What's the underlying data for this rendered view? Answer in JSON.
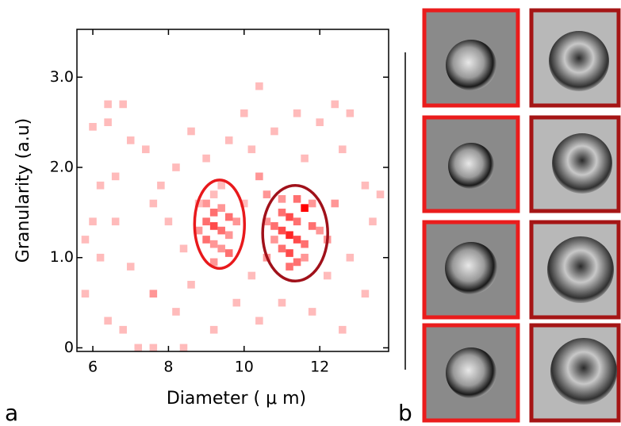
{
  "chart_data": {
    "type": "heatmap",
    "xlabel": "Diameter ( μ m)",
    "ylabel": "Granularity (a.u)",
    "panel_labels": [
      "a",
      "b"
    ],
    "xlim": [
      5.58,
      13.82
    ],
    "ylim": [
      -0.04,
      3.53
    ],
    "xticks": [
      6,
      8,
      10,
      12
    ],
    "yticks": [
      0,
      {
        "value": 1.0,
        "label": "1.0"
      },
      {
        "value": 2.0,
        "label": "2.0"
      },
      {
        "value": 3.0,
        "label": "3.0"
      }
    ],
    "xbin": 0.2,
    "ybin": 0.085,
    "color": "#ff0000",
    "cells": [
      [
        9.0,
        1.6,
        2
      ],
      [
        9.2,
        1.5,
        3
      ],
      [
        9.4,
        1.55,
        2
      ],
      [
        9.6,
        1.45,
        3
      ],
      [
        9.0,
        1.4,
        3
      ],
      [
        9.2,
        1.35,
        4
      ],
      [
        9.4,
        1.3,
        3
      ],
      [
        9.6,
        1.25,
        2
      ],
      [
        8.8,
        1.3,
        2
      ],
      [
        9.0,
        1.2,
        3
      ],
      [
        9.2,
        1.15,
        2
      ],
      [
        9.4,
        1.1,
        2
      ],
      [
        9.6,
        1.05,
        3
      ],
      [
        9.2,
        1.7,
        1
      ],
      [
        9.8,
        1.4,
        2
      ],
      [
        9.4,
        1.8,
        1
      ],
      [
        8.8,
        1.6,
        1
      ],
      [
        9.2,
        0.95,
        2
      ],
      [
        11.0,
        1.5,
        3
      ],
      [
        11.2,
        1.45,
        4
      ],
      [
        11.4,
        1.4,
        3
      ],
      [
        11.6,
        1.55,
        6
      ],
      [
        11.8,
        1.35,
        3
      ],
      [
        10.8,
        1.35,
        3
      ],
      [
        11.0,
        1.3,
        4
      ],
      [
        11.2,
        1.25,
        5
      ],
      [
        11.4,
        1.2,
        4
      ],
      [
        11.6,
        1.15,
        3
      ],
      [
        11.0,
        1.1,
        3
      ],
      [
        11.2,
        1.05,
        4
      ],
      [
        11.4,
        0.95,
        3
      ],
      [
        10.8,
        1.2,
        2
      ],
      [
        11.8,
        1.6,
        2
      ],
      [
        11.4,
        1.65,
        3
      ],
      [
        11.0,
        1.65,
        2
      ],
      [
        11.2,
        0.9,
        3
      ],
      [
        10.6,
        1.4,
        2
      ],
      [
        12.0,
        1.3,
        2
      ],
      [
        11.6,
        1.0,
        2
      ],
      [
        10.6,
        1.0,
        2
      ],
      [
        6.4,
        2.7,
        1
      ],
      [
        6.8,
        2.7,
        1
      ],
      [
        6.0,
        2.45,
        1
      ],
      [
        6.4,
        2.5,
        1
      ],
      [
        7.4,
        2.2,
        1
      ],
      [
        7.0,
        2.3,
        1
      ],
      [
        6.2,
        1.8,
        1
      ],
      [
        6.6,
        1.9,
        1
      ],
      [
        7.6,
        1.6,
        1
      ],
      [
        7.8,
        1.8,
        1
      ],
      [
        6.0,
        1.4,
        1
      ],
      [
        6.6,
        1.4,
        1
      ],
      [
        6.2,
        1.0,
        1
      ],
      [
        7.0,
        0.9,
        1
      ],
      [
        7.6,
        0.6,
        2
      ],
      [
        8.2,
        0.4,
        1
      ],
      [
        6.4,
        0.3,
        1
      ],
      [
        6.8,
        0.2,
        1
      ],
      [
        7.2,
        0.0,
        1
      ],
      [
        7.6,
        0.0,
        1
      ],
      [
        8.4,
        0.0,
        1
      ],
      [
        9.2,
        0.2,
        1
      ],
      [
        9.8,
        0.5,
        1
      ],
      [
        10.2,
        0.8,
        1
      ],
      [
        10.4,
        0.3,
        1
      ],
      [
        11.0,
        0.5,
        1
      ],
      [
        11.8,
        0.4,
        1
      ],
      [
        12.6,
        0.2,
        1
      ],
      [
        13.2,
        0.6,
        1
      ],
      [
        12.2,
        0.8,
        1
      ],
      [
        12.8,
        1.0,
        1
      ],
      [
        13.4,
        1.4,
        1
      ],
      [
        13.2,
        1.8,
        1
      ],
      [
        12.6,
        2.2,
        1
      ],
      [
        12.0,
        2.5,
        1
      ],
      [
        12.4,
        2.7,
        1
      ],
      [
        11.4,
        2.6,
        1
      ],
      [
        10.8,
        2.4,
        1
      ],
      [
        10.2,
        2.2,
        1
      ],
      [
        10.0,
        2.6,
        1
      ],
      [
        10.4,
        2.9,
        1
      ],
      [
        9.6,
        2.3,
        1
      ],
      [
        8.6,
        2.4,
        1
      ],
      [
        8.2,
        2.0,
        1
      ],
      [
        10.4,
        1.9,
        2
      ],
      [
        10.0,
        1.6,
        1
      ],
      [
        12.4,
        1.6,
        2
      ],
      [
        12.2,
        1.2,
        2
      ],
      [
        8.4,
        1.1,
        1
      ],
      [
        8.0,
        1.4,
        1
      ],
      [
        5.8,
        0.6,
        1
      ],
      [
        5.8,
        1.2,
        1
      ],
      [
        13.6,
        1.7,
        1
      ],
      [
        9.0,
        2.1,
        1
      ],
      [
        11.6,
        2.1,
        1
      ],
      [
        10.6,
        1.7,
        2
      ],
      [
        8.6,
        0.7,
        1
      ],
      [
        12.8,
        2.6,
        1
      ]
    ],
    "ellipses": [
      {
        "center": [
          9.35,
          1.37
        ],
        "width": 1.32,
        "height": 0.98,
        "color": "#e8191c"
      },
      {
        "center": [
          11.35,
          1.27
        ],
        "width": 1.72,
        "height": 1.06,
        "color": "#a0111a"
      }
    ]
  }
}
